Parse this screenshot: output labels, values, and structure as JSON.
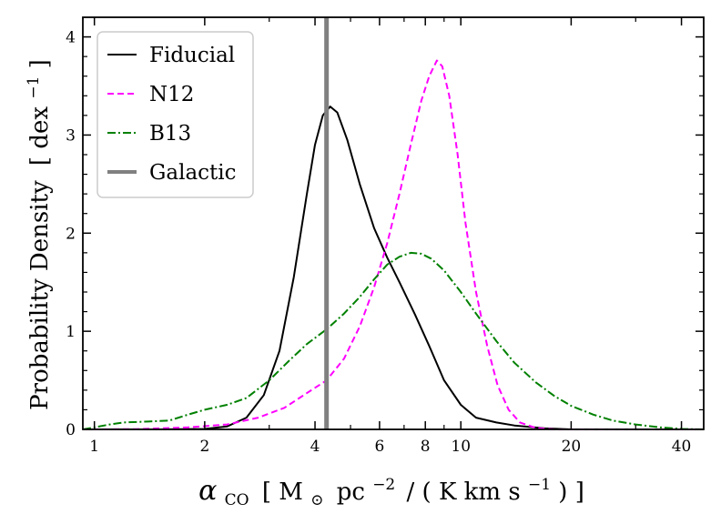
{
  "chart_data": {
    "type": "line",
    "x_scale": "log",
    "xlim": [
      0.93,
      46
    ],
    "ylim": [
      0,
      4.2
    ],
    "xlabel": {
      "symbol": "α",
      "sub": "CO",
      "bracket_open": "[",
      "mass": "M",
      "sun": "⊙",
      "pc": "pc",
      "exp1": "−2",
      "sep": "/",
      "paren_open": "(",
      "kkms": "K km s",
      "exp2": "−1",
      "paren_close": ")",
      "bracket_close": "]"
    },
    "ylabel": {
      "main": "Probability Density",
      "bracket_open": "[",
      "unit": "dex",
      "exp": "−1",
      "bracket_close": "]"
    },
    "xticks": [
      {
        "value": 1,
        "label": "1"
      },
      {
        "value": 2,
        "label": "2"
      },
      {
        "value": 4,
        "label": "4"
      },
      {
        "value": 6,
        "label": "6"
      },
      {
        "value": 8,
        "label": "8"
      },
      {
        "value": 10,
        "label": "10"
      },
      {
        "value": 20,
        "label": "20"
      },
      {
        "value": 40,
        "label": "40"
      }
    ],
    "xminor": [
      3,
      5,
      7,
      9,
      30
    ],
    "yticks": [
      {
        "value": 0,
        "label": "0"
      },
      {
        "value": 1,
        "label": "1"
      },
      {
        "value": 2,
        "label": "2"
      },
      {
        "value": 3,
        "label": "3"
      },
      {
        "value": 4,
        "label": "4"
      }
    ],
    "series": [
      {
        "name": "Fiducial",
        "color": "#000000",
        "dash": "",
        "points": [
          [
            0.93,
            0
          ],
          [
            1.5,
            0
          ],
          [
            2.0,
            0.005
          ],
          [
            2.3,
            0.03
          ],
          [
            2.6,
            0.12
          ],
          [
            2.9,
            0.35
          ],
          [
            3.2,
            0.8
          ],
          [
            3.5,
            1.55
          ],
          [
            3.8,
            2.4
          ],
          [
            4.0,
            2.9
          ],
          [
            4.2,
            3.2
          ],
          [
            4.4,
            3.29
          ],
          [
            4.6,
            3.23
          ],
          [
            4.9,
            2.95
          ],
          [
            5.3,
            2.5
          ],
          [
            5.8,
            2.05
          ],
          [
            6.3,
            1.75
          ],
          [
            6.8,
            1.5
          ],
          [
            7.5,
            1.17
          ],
          [
            8.2,
            0.85
          ],
          [
            9.0,
            0.5
          ],
          [
            10.0,
            0.25
          ],
          [
            11.0,
            0.12
          ],
          [
            12.5,
            0.07
          ],
          [
            14,
            0.04
          ],
          [
            17,
            0.01
          ],
          [
            20,
            0
          ],
          [
            46,
            0
          ]
        ]
      },
      {
        "name": "N12",
        "color": "#ff00ff",
        "dash": "7,4",
        "points": [
          [
            0.93,
            0
          ],
          [
            1.3,
            0.003
          ],
          [
            1.8,
            0.02
          ],
          [
            2.3,
            0.05
          ],
          [
            2.8,
            0.12
          ],
          [
            3.3,
            0.22
          ],
          [
            3.8,
            0.37
          ],
          [
            4.3,
            0.5
          ],
          [
            4.8,
            0.72
          ],
          [
            5.3,
            1.05
          ],
          [
            5.8,
            1.45
          ],
          [
            6.3,
            1.9
          ],
          [
            6.8,
            2.4
          ],
          [
            7.3,
            2.9
          ],
          [
            7.8,
            3.35
          ],
          [
            8.2,
            3.6
          ],
          [
            8.6,
            3.76
          ],
          [
            8.9,
            3.7
          ],
          [
            9.3,
            3.4
          ],
          [
            9.8,
            2.8
          ],
          [
            10.3,
            2.1
          ],
          [
            11,
            1.4
          ],
          [
            11.8,
            0.85
          ],
          [
            12.6,
            0.45
          ],
          [
            13.5,
            0.2
          ],
          [
            14.5,
            0.07
          ],
          [
            16,
            0.015
          ],
          [
            18,
            0
          ],
          [
            46,
            0
          ]
        ]
      },
      {
        "name": "B13",
        "color": "#008000",
        "dash": "9,3,2,3",
        "points": [
          [
            0.93,
            0
          ],
          [
            1.0,
            0.02
          ],
          [
            1.1,
            0.05
          ],
          [
            1.2,
            0.07
          ],
          [
            1.4,
            0.08
          ],
          [
            1.6,
            0.09
          ],
          [
            1.8,
            0.15
          ],
          [
            2.0,
            0.2
          ],
          [
            2.3,
            0.25
          ],
          [
            2.6,
            0.32
          ],
          [
            3.0,
            0.5
          ],
          [
            3.4,
            0.7
          ],
          [
            3.8,
            0.87
          ],
          [
            4.3,
            1.02
          ],
          [
            4.8,
            1.18
          ],
          [
            5.3,
            1.35
          ],
          [
            5.8,
            1.53
          ],
          [
            6.3,
            1.68
          ],
          [
            6.8,
            1.76
          ],
          [
            7.3,
            1.8
          ],
          [
            7.8,
            1.79
          ],
          [
            8.3,
            1.74
          ],
          [
            9.0,
            1.62
          ],
          [
            10,
            1.4
          ],
          [
            11,
            1.18
          ],
          [
            12.5,
            0.9
          ],
          [
            14,
            0.68
          ],
          [
            16,
            0.48
          ],
          [
            18,
            0.34
          ],
          [
            20,
            0.24
          ],
          [
            23,
            0.15
          ],
          [
            26,
            0.09
          ],
          [
            30,
            0.05
          ],
          [
            35,
            0.02
          ],
          [
            40,
            0.005
          ],
          [
            46,
            0
          ]
        ]
      }
    ],
    "reference_line": {
      "name": "Galactic",
      "x": 4.3,
      "color": "#808080"
    },
    "legend": {
      "position": "top-left",
      "entries": [
        {
          "label": "Fiducial",
          "color": "#000000",
          "dash": ""
        },
        {
          "label": "N12",
          "color": "#ff00ff",
          "dash": "7,4"
        },
        {
          "label": "B13",
          "color": "#008000",
          "dash": "9,3,2,3"
        },
        {
          "label": "Galactic",
          "color": "#808080",
          "dash": "",
          "thick": true
        }
      ]
    }
  }
}
